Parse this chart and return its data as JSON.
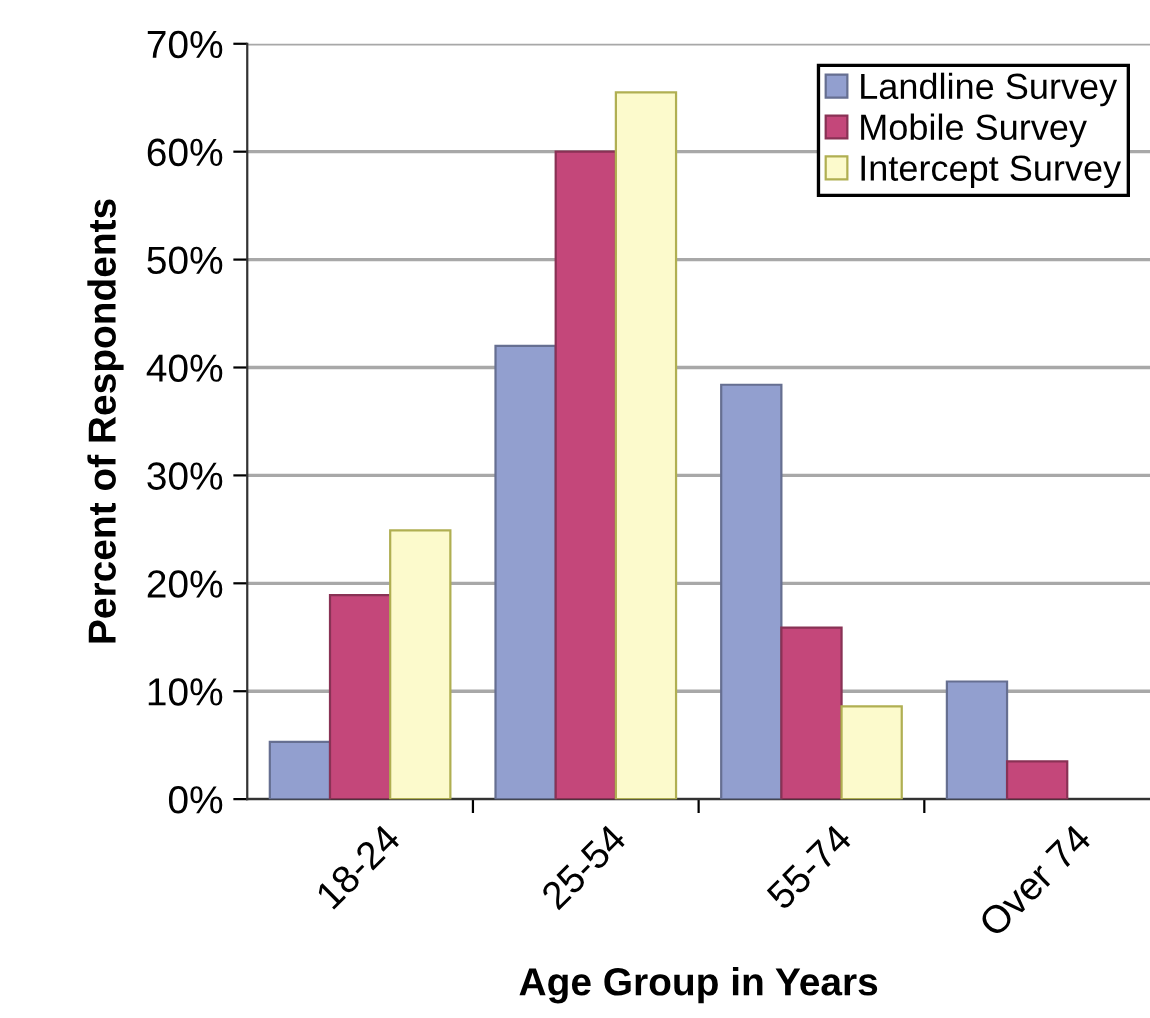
{
  "chart_data": {
    "type": "bar",
    "xlabel": "Age Group in Years",
    "ylabel": "Percent of Respondents",
    "categories": [
      "18-24",
      "25-54",
      "55-74",
      "Over 74"
    ],
    "series": [
      {
        "name": "Landline Survey",
        "color": "#929fcf",
        "values": [
          5.3,
          42.0,
          38.4,
          10.9
        ]
      },
      {
        "name": "Mobile Survey",
        "color": "#c4477a",
        "values": [
          18.9,
          60.0,
          15.9,
          3.5
        ]
      },
      {
        "name": "Intercept Survey",
        "color": "#fcfacc",
        "values": [
          24.9,
          65.5,
          8.6,
          null
        ]
      }
    ],
    "ylim": [
      0,
      70
    ],
    "yticks": [
      {
        "value": 0,
        "label": "0%"
      },
      {
        "value": 10,
        "label": "10%"
      },
      {
        "value": 20,
        "label": "20%"
      },
      {
        "value": 30,
        "label": "30%"
      },
      {
        "value": 40,
        "label": "40%"
      },
      {
        "value": 50,
        "label": "50%"
      },
      {
        "value": 60,
        "label": "60%"
      },
      {
        "value": 70,
        "label": "70%"
      }
    ],
    "grid": "y",
    "legend": "top right"
  }
}
